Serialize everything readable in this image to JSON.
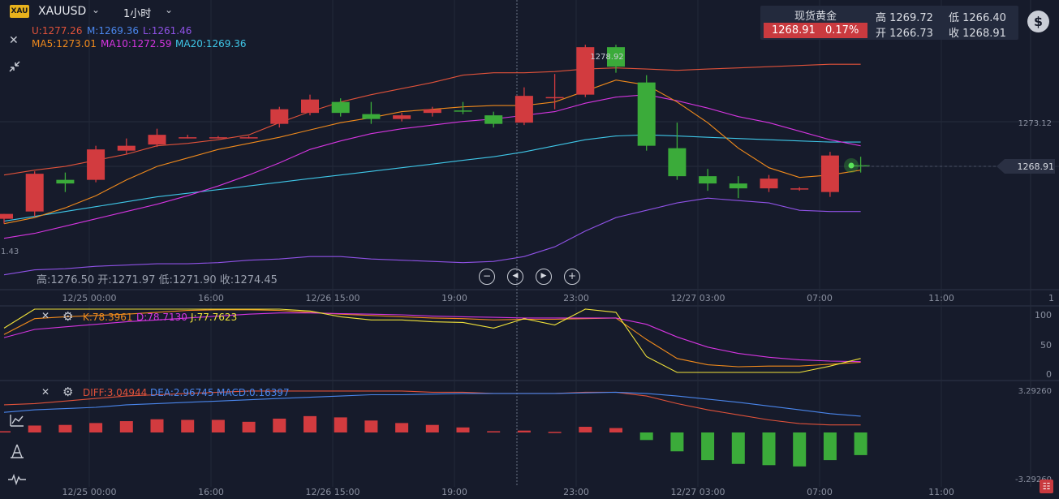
{
  "header": {
    "symbol_badge": "XAU",
    "symbol": "XAUUSD",
    "timeframe": "1小时",
    "boll_u": "U:1277.26",
    "boll_m": "M:1269.36",
    "boll_l": "L:1261.46",
    "ma5": "MA5:1273.01",
    "ma10": "MA10:1272.59",
    "ma20": "MA20:1269.36"
  },
  "quote": {
    "name": "现货黄金",
    "price": "1268.91",
    "change_pct": "0.17%",
    "high": "高 1269.72",
    "low": "低 1266.40",
    "open": "开 1266.73",
    "close": "收 1268.91"
  },
  "hover_info": "高:1276.50 开:1271.97 低:1271.90 收:1274.45",
  "kdj_legend": {
    "k": "K:78.3961",
    "d": "D:78.7130",
    "j": "J:77.7623"
  },
  "macd_legend": {
    "diff": "DIFF:3.04944",
    "dea": "DEA:2.96745",
    "macd": "MACD:0.16397"
  },
  "labels": {
    "peak": "1278.92",
    "left_low": "1.43",
    "right_tick": "1273.12",
    "current_price": "1268.91",
    "macd_top": "3.29260",
    "macd_bottom": "-3.29260",
    "kdj_100": "100",
    "kdj_50": "50",
    "kdj_0": "0",
    "right_edge_1": "1"
  },
  "time_axis": [
    "12/25 00:00",
    "16:00",
    "12/26 15:00",
    "19:00",
    "23:00",
    "12/27 03:00",
    "07:00",
    "11:00"
  ],
  "colors": {
    "up": "#d23b3f",
    "down": "#3bab3a",
    "boll_u": "#e0523a",
    "boll_m": "#3fc7e8",
    "boll_l": "#8f52e6",
    "ma5": "#f08a1c",
    "ma10": "#d535e0",
    "ma20": "#3fc7e8",
    "k": "#f08a1c",
    "d": "#d535e0",
    "j": "#f0e23a",
    "diff": "#e0523a",
    "dea": "#4a86ec"
  },
  "chart_data": {
    "type": "candlestick",
    "interval": "1h",
    "candles": [
      {
        "o": 1264.6,
        "h": 1265.0,
        "l": 1264.2,
        "c": 1265.0
      },
      {
        "o": 1265.2,
        "h": 1268.5,
        "l": 1264.8,
        "c": 1268.3
      },
      {
        "o": 1267.8,
        "h": 1268.4,
        "l": 1266.8,
        "c": 1267.5
      },
      {
        "o": 1267.8,
        "h": 1270.6,
        "l": 1267.6,
        "c": 1270.3
      },
      {
        "o": 1270.2,
        "h": 1271.2,
        "l": 1269.9,
        "c": 1270.6
      },
      {
        "o": 1270.7,
        "h": 1272.0,
        "l": 1270.5,
        "c": 1271.5
      },
      {
        "o": 1271.3,
        "h": 1271.5,
        "l": 1271.2,
        "c": 1271.3
      },
      {
        "o": 1271.3,
        "h": 1271.4,
        "l": 1271.2,
        "c": 1271.3
      },
      {
        "o": 1271.3,
        "h": 1271.4,
        "l": 1271.2,
        "c": 1271.3
      },
      {
        "o": 1272.4,
        "h": 1273.8,
        "l": 1272.1,
        "c": 1273.6
      },
      {
        "o": 1273.3,
        "h": 1274.8,
        "l": 1273.1,
        "c": 1274.4
      },
      {
        "o": 1274.2,
        "h": 1274.5,
        "l": 1273.0,
        "c": 1273.3
      },
      {
        "o": 1273.2,
        "h": 1274.2,
        "l": 1272.4,
        "c": 1272.8
      },
      {
        "o": 1272.8,
        "h": 1273.3,
        "l": 1272.6,
        "c": 1273.1
      },
      {
        "o": 1273.3,
        "h": 1273.8,
        "l": 1273.0,
        "c": 1273.6
      },
      {
        "o": 1273.5,
        "h": 1274.2,
        "l": 1273.2,
        "c": 1273.4
      },
      {
        "o": 1273.1,
        "h": 1273.4,
        "l": 1272.1,
        "c": 1272.4
      },
      {
        "o": 1272.5,
        "h": 1275.4,
        "l": 1272.3,
        "c": 1274.7
      },
      {
        "o": 1274.6,
        "h": 1276.5,
        "l": 1273.6,
        "c": 1274.6
      },
      {
        "o": 1274.8,
        "h": 1278.9,
        "l": 1274.6,
        "c": 1278.7
      },
      {
        "o": 1278.7,
        "h": 1278.9,
        "l": 1276.6,
        "c": 1277.1
      },
      {
        "o": 1275.8,
        "h": 1276.4,
        "l": 1270.2,
        "c": 1270.6
      },
      {
        "o": 1270.4,
        "h": 1272.5,
        "l": 1267.8,
        "c": 1268.1
      },
      {
        "o": 1268.1,
        "h": 1268.7,
        "l": 1266.9,
        "c": 1267.5
      },
      {
        "o": 1267.5,
        "h": 1268.1,
        "l": 1266.3,
        "c": 1267.1
      },
      {
        "o": 1267.1,
        "h": 1268.2,
        "l": 1266.8,
        "c": 1267.9
      },
      {
        "o": 1267.1,
        "h": 1267.2,
        "l": 1266.9,
        "c": 1267.1
      },
      {
        "o": 1266.8,
        "h": 1270.1,
        "l": 1266.4,
        "c": 1269.8
      },
      {
        "o": 1269.0,
        "h": 1269.7,
        "l": 1268.4,
        "c": 1268.9
      }
    ],
    "boll_upper": [
      1268.2,
      1268.6,
      1268.9,
      1269.4,
      1269.9,
      1270.6,
      1270.8,
      1271.1,
      1271.5,
      1272.5,
      1273.4,
      1274.2,
      1274.8,
      1275.3,
      1275.8,
      1276.4,
      1276.6,
      1276.6,
      1276.7,
      1276.9,
      1277.0,
      1276.9,
      1276.8,
      1276.9,
      1277.0,
      1277.1,
      1277.2,
      1277.3,
      1277.3
    ],
    "boll_mid": [
      1264.4,
      1264.8,
      1265.2,
      1265.6,
      1266.0,
      1266.4,
      1266.7,
      1267.0,
      1267.3,
      1267.6,
      1267.9,
      1268.2,
      1268.5,
      1268.8,
      1269.1,
      1269.4,
      1269.7,
      1270.1,
      1270.6,
      1271.1,
      1271.4,
      1271.5,
      1271.4,
      1271.3,
      1271.2,
      1271.1,
      1271.0,
      1270.9,
      1270.9
    ],
    "boll_lower": [
      1260.0,
      1260.4,
      1260.5,
      1260.7,
      1260.8,
      1260.9,
      1260.9,
      1261.0,
      1261.2,
      1261.3,
      1261.5,
      1261.5,
      1261.3,
      1261.2,
      1261.1,
      1261.0,
      1261.1,
      1261.5,
      1262.3,
      1263.6,
      1264.7,
      1265.3,
      1265.9,
      1266.3,
      1266.1,
      1265.9,
      1265.3,
      1265.2,
      1265.2
    ],
    "ma5": [
      1264.2,
      1264.7,
      1265.5,
      1266.5,
      1267.8,
      1268.9,
      1269.6,
      1270.3,
      1270.8,
      1271.3,
      1271.9,
      1272.5,
      1272.9,
      1273.4,
      1273.6,
      1273.8,
      1273.9,
      1273.9,
      1274.2,
      1275.1,
      1276.0,
      1275.6,
      1274.2,
      1272.5,
      1270.4,
      1268.8,
      1268.0,
      1268.2,
      1268.6
    ],
    "ma10": [
      1263.0,
      1263.4,
      1264.0,
      1264.6,
      1265.2,
      1265.8,
      1266.5,
      1267.3,
      1268.2,
      1269.2,
      1270.3,
      1271.0,
      1271.6,
      1272.0,
      1272.3,
      1272.6,
      1272.8,
      1273.1,
      1273.4,
      1274.1,
      1274.6,
      1274.8,
      1274.3,
      1273.7,
      1273.0,
      1272.5,
      1271.8,
      1271.1,
      1270.6
    ],
    "ma20": [
      1264.4,
      1264.8,
      1265.2,
      1265.6,
      1266.0,
      1266.4,
      1266.7,
      1267.0,
      1267.3,
      1267.6,
      1267.9,
      1268.2,
      1268.5,
      1268.8,
      1269.1,
      1269.4,
      1269.7,
      1270.1,
      1270.6,
      1271.1,
      1271.4,
      1271.5,
      1271.4,
      1271.3,
      1271.2,
      1271.1,
      1271.0,
      1270.9,
      1270.9
    ],
    "kdj_k": [
      60,
      85,
      88,
      90,
      92,
      95,
      98,
      99,
      99,
      98,
      95,
      92,
      90,
      88,
      86,
      85,
      83,
      84,
      84,
      85,
      86,
      52,
      22,
      12,
      9,
      10,
      10,
      13,
      16
    ],
    "kdj_d": [
      55,
      68,
      72,
      76,
      80,
      83,
      86,
      89,
      92,
      94,
      94,
      93,
      92,
      91,
      89,
      88,
      87,
      86,
      86,
      86,
      86,
      76,
      56,
      40,
      30,
      24,
      20,
      18,
      17
    ],
    "kdj_j": [
      70,
      100,
      100,
      100,
      100,
      100,
      100,
      100,
      100,
      100,
      97,
      88,
      83,
      83,
      80,
      79,
      70,
      85,
      75,
      100,
      95,
      25,
      0,
      0,
      0,
      0,
      0,
      10,
      22
    ],
    "macd_diff": [
      2.2,
      2.3,
      2.5,
      2.7,
      2.9,
      3.0,
      3.1,
      3.2,
      3.3,
      3.3,
      3.3,
      3.3,
      3.3,
      3.3,
      3.2,
      3.2,
      3.1,
      3.1,
      3.1,
      3.2,
      3.2,
      2.9,
      2.3,
      1.8,
      1.4,
      1.0,
      0.7,
      0.6,
      0.6
    ],
    "macd_dea": [
      1.6,
      1.8,
      1.9,
      2.0,
      2.2,
      2.3,
      2.4,
      2.5,
      2.6,
      2.7,
      2.8,
      2.9,
      3.0,
      3.0,
      3.05,
      3.1,
      3.1,
      3.1,
      3.1,
      3.15,
      3.2,
      3.1,
      2.9,
      2.65,
      2.4,
      2.1,
      1.8,
      1.5,
      1.3
    ],
    "macd_hist": [
      0.1,
      0.55,
      0.6,
      0.75,
      0.9,
      1.05,
      1.0,
      1.0,
      0.85,
      1.1,
      1.3,
      1.2,
      0.95,
      0.75,
      0.6,
      0.4,
      0.1,
      0.15,
      0.05,
      0.45,
      0.35,
      -0.6,
      -1.5,
      -2.2,
      -2.5,
      -2.6,
      -2.7,
      -2.2,
      -1.8
    ]
  }
}
